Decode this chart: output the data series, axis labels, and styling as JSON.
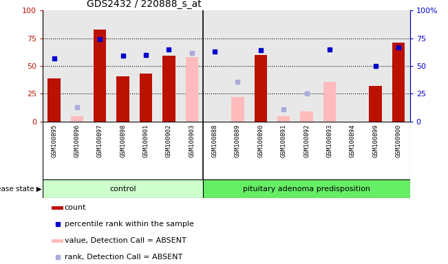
{
  "title": "GDS2432 / 220888_s_at",
  "samples": [
    "GSM100895",
    "GSM100896",
    "GSM100897",
    "GSM100898",
    "GSM100901",
    "GSM100902",
    "GSM100903",
    "GSM100888",
    "GSM100889",
    "GSM100890",
    "GSM100891",
    "GSM100892",
    "GSM100893",
    "GSM100894",
    "GSM100899",
    "GSM100900"
  ],
  "count": [
    39,
    0,
    83,
    41,
    43,
    59,
    55,
    0,
    0,
    60,
    0,
    0,
    0,
    0,
    32,
    71
  ],
  "percentile_rank": [
    57,
    0,
    74,
    59,
    60,
    65,
    63,
    63,
    0,
    64,
    0,
    0,
    65,
    0,
    50,
    67
  ],
  "absent_value": [
    0,
    5,
    0,
    0,
    0,
    0,
    58,
    0,
    22,
    0,
    5,
    9,
    36,
    0,
    0,
    0
  ],
  "absent_rank": [
    0,
    13,
    0,
    0,
    0,
    0,
    62,
    0,
    36,
    0,
    11,
    25,
    0,
    0,
    0,
    0
  ],
  "absent_flags_value": [
    false,
    true,
    false,
    false,
    false,
    false,
    true,
    false,
    true,
    false,
    true,
    true,
    true,
    false,
    false,
    false
  ],
  "absent_flags_rank": [
    false,
    true,
    false,
    false,
    false,
    false,
    true,
    false,
    true,
    false,
    true,
    true,
    false,
    false,
    false,
    false
  ],
  "control_count": 7,
  "group_labels": [
    "control",
    "pituitary adenoma predisposition"
  ],
  "ylim": [
    0,
    100
  ],
  "bar_color_red": "#bb1100",
  "bar_color_pink": "#ffbbbb",
  "dot_color_blue": "#0000cc",
  "dot_color_lightblue": "#aaaadd",
  "grid_lines": [
    25,
    50,
    75
  ],
  "plot_bg": "#e8e8e8",
  "xtick_bg": "#d0d0d0",
  "control_bg": "#ccffcc",
  "disease_bg": "#66ee66"
}
